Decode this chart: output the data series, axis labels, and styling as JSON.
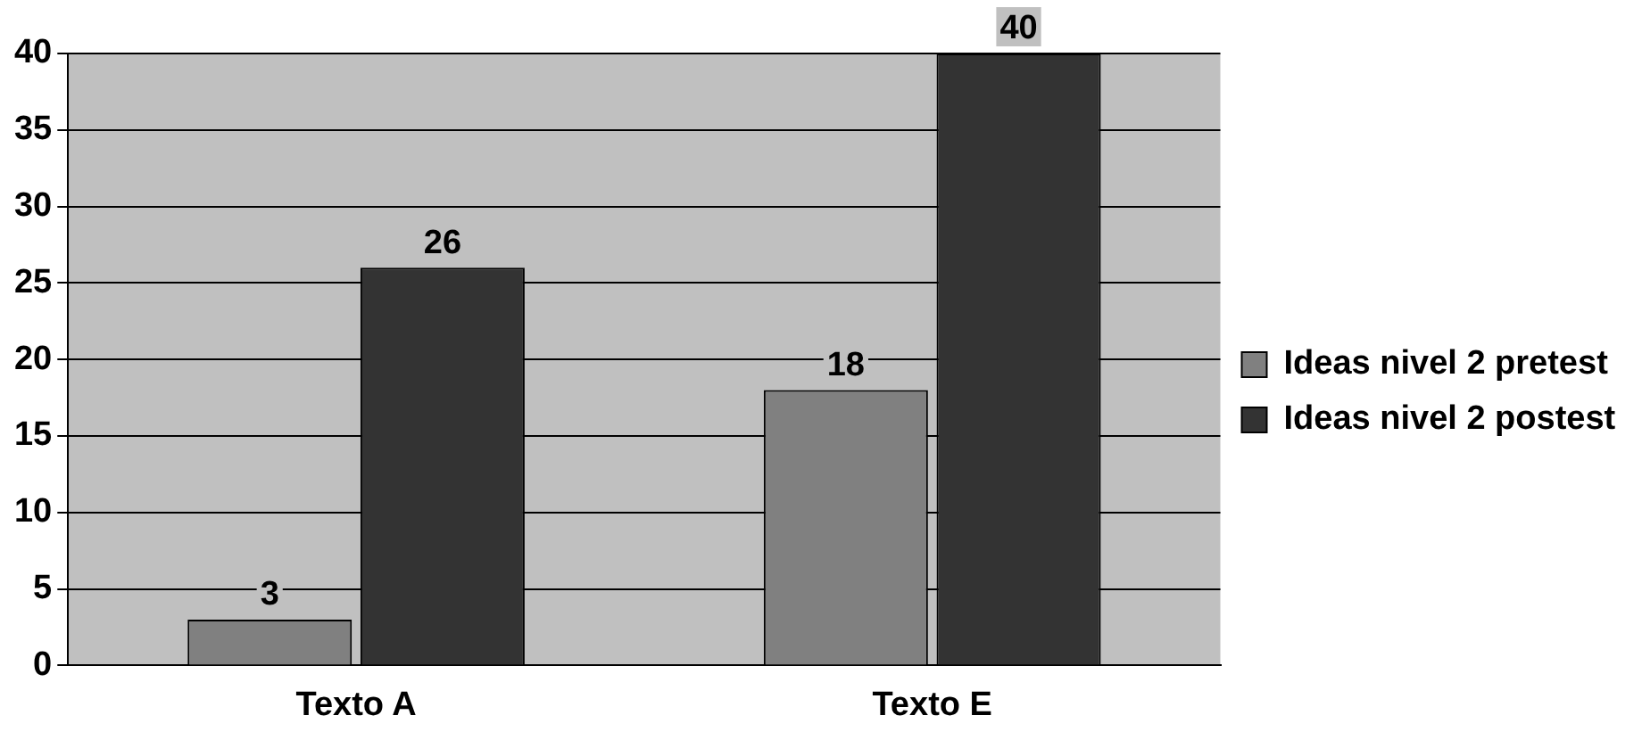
{
  "chart_data": {
    "type": "bar",
    "categories": [
      "Texto A",
      "Texto E"
    ],
    "series": [
      {
        "name": "Ideas nivel 2 pretest",
        "color": "#808080",
        "values": [
          3,
          18
        ]
      },
      {
        "name": "Ideas nivel 2 postest",
        "color": "#333333",
        "values": [
          26,
          40
        ]
      }
    ],
    "ylim": [
      0,
      40
    ],
    "yticks": [
      0,
      5,
      10,
      15,
      20,
      25,
      30,
      35,
      40
    ],
    "grid": "y",
    "legend": "right",
    "data_labels": true
  }
}
